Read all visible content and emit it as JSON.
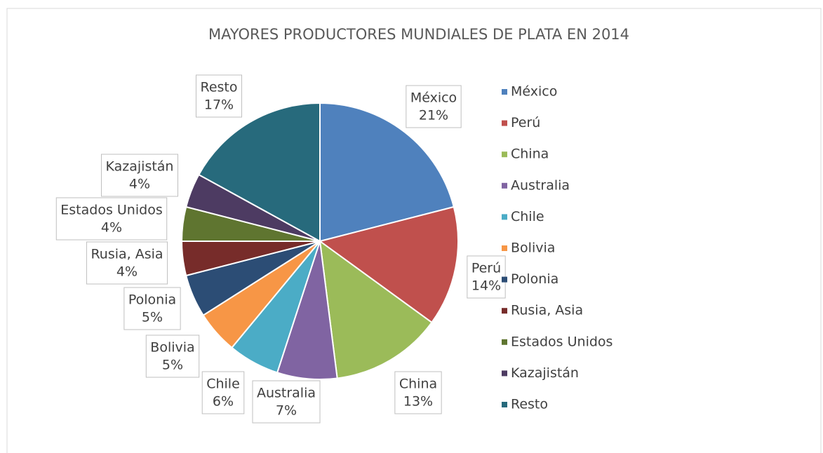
{
  "chart_data": {
    "type": "pie",
    "title": "MAYORES PRODUCTORES MUNDIALES DE PLATA EN 2014",
    "categories": [
      "México",
      "Perú",
      "China",
      "Australia",
      "Chile",
      "Bolivia",
      "Polonia",
      "Rusia, Asia",
      "Estados Unidos",
      "Kazajistán",
      "Resto"
    ],
    "values": [
      21,
      14,
      13,
      7,
      6,
      5,
      5,
      4,
      4,
      4,
      17
    ],
    "value_labels": [
      "21%",
      "14%",
      "13%",
      "7%",
      "6%",
      "5%",
      "5%",
      "4%",
      "4%",
      "4%",
      "17%"
    ],
    "colors": [
      "#4f81bd",
      "#c0504d",
      "#9bbb59",
      "#8064a2",
      "#4bacc6",
      "#f79646",
      "#2c4d75",
      "#772c2a",
      "#5f7530",
      "#4d3b62",
      "#276a7c"
    ],
    "legend": "right"
  }
}
